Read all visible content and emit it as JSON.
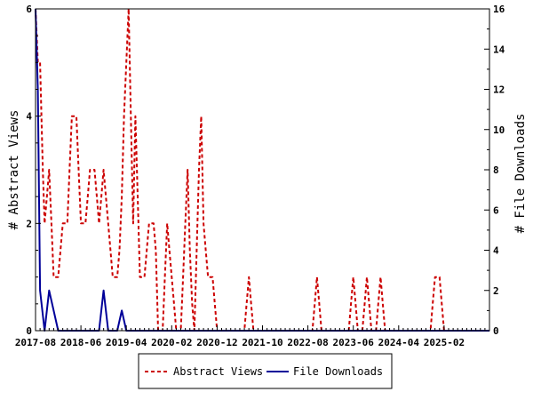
{
  "chart_data": {
    "type": "line",
    "xlabel": "",
    "ylabel_left": "# Abstract Views",
    "ylabel_right": "# File Downloads",
    "ylim_left": [
      0,
      6
    ],
    "ylim_right": [
      0,
      16
    ],
    "yticks_left": [
      0,
      2,
      4,
      6
    ],
    "yticks_right": [
      0,
      2,
      4,
      6,
      8,
      10,
      12,
      14,
      16
    ],
    "xlim": [
      0,
      100
    ],
    "xticks": [
      {
        "x": 0,
        "label": "2017-08"
      },
      {
        "x": 10,
        "label": "2018-06"
      },
      {
        "x": 20,
        "label": "2019-04"
      },
      {
        "x": 30,
        "label": "2020-02"
      },
      {
        "x": 40,
        "label": "2020-12"
      },
      {
        "x": 50,
        "label": "2021-10"
      },
      {
        "x": 60,
        "label": "2022-08"
      },
      {
        "x": 70,
        "label": "2023-06"
      },
      {
        "x": 80,
        "label": "2024-04"
      },
      {
        "x": 90,
        "label": "2025-02"
      }
    ],
    "grid": false,
    "legend_position": "bottom",
    "series": [
      {
        "name": "Abstract Views",
        "axis": "left",
        "color": "#cc0000",
        "style": "dashed",
        "points": [
          [
            0,
            6
          ],
          [
            0.5,
            5
          ],
          [
            1,
            5
          ],
          [
            1.6,
            3
          ],
          [
            2,
            2
          ],
          [
            2.5,
            2.5
          ],
          [
            3,
            3
          ],
          [
            3.5,
            2
          ],
          [
            4,
            1
          ],
          [
            5,
            1
          ],
          [
            5.5,
            1.5
          ],
          [
            6,
            2
          ],
          [
            7,
            2
          ],
          [
            7.5,
            3
          ],
          [
            8,
            4
          ],
          [
            9,
            4
          ],
          [
            9.5,
            3
          ],
          [
            10,
            2
          ],
          [
            11,
            2
          ],
          [
            11.5,
            2.5
          ],
          [
            12,
            3
          ],
          [
            13,
            3
          ],
          [
            13.5,
            2.5
          ],
          [
            14,
            2
          ],
          [
            14.5,
            2.5
          ],
          [
            15,
            3
          ],
          [
            15.5,
            2.5
          ],
          [
            16,
            2
          ],
          [
            17,
            1
          ],
          [
            18,
            1
          ],
          [
            18.5,
            1.5
          ],
          [
            19,
            2.5
          ],
          [
            19.5,
            4
          ],
          [
            20,
            5
          ],
          [
            20.5,
            6
          ],
          [
            21,
            4
          ],
          [
            21.5,
            2
          ],
          [
            22,
            4
          ],
          [
            22.5,
            2.5
          ],
          [
            23,
            1
          ],
          [
            24,
            1
          ],
          [
            24.5,
            1.5
          ],
          [
            25,
            2
          ],
          [
            26,
            2
          ],
          [
            26.5,
            1.5
          ],
          [
            27,
            0
          ],
          [
            28,
            0
          ],
          [
            28.5,
            1
          ],
          [
            29,
            2
          ],
          [
            29.5,
            1.5
          ],
          [
            30,
            1
          ],
          [
            30.5,
            0.5
          ],
          [
            31,
            0
          ],
          [
            32,
            0
          ],
          [
            32.5,
            1
          ],
          [
            33,
            2
          ],
          [
            33.5,
            3
          ],
          [
            34,
            1.5
          ],
          [
            34.5,
            0.5
          ],
          [
            35,
            0
          ],
          [
            35.5,
            1.5
          ],
          [
            36,
            3
          ],
          [
            36.5,
            4
          ],
          [
            37,
            2
          ],
          [
            37.5,
            1.5
          ],
          [
            38,
            1
          ],
          [
            39,
            1
          ],
          [
            39.5,
            0.5
          ],
          [
            40,
            0
          ],
          [
            46,
            0
          ],
          [
            46.5,
            0.5
          ],
          [
            47,
            1
          ],
          [
            47.5,
            0.5
          ],
          [
            48,
            0
          ],
          [
            61,
            0
          ],
          [
            61.5,
            0.5
          ],
          [
            62,
            1
          ],
          [
            62.5,
            0.5
          ],
          [
            63,
            0
          ],
          [
            69,
            0
          ],
          [
            69.5,
            0.5
          ],
          [
            70,
            1
          ],
          [
            70.5,
            0.5
          ],
          [
            71,
            0
          ],
          [
            72,
            0
          ],
          [
            72.5,
            0.5
          ],
          [
            73,
            1
          ],
          [
            73.5,
            0.5
          ],
          [
            74,
            0
          ],
          [
            75,
            0
          ],
          [
            75.5,
            0.5
          ],
          [
            76,
            1
          ],
          [
            76.5,
            0.5
          ],
          [
            77,
            0
          ],
          [
            87,
            0
          ],
          [
            87.5,
            0.5
          ],
          [
            88,
            1
          ],
          [
            89,
            1
          ],
          [
            89.5,
            0.5
          ],
          [
            90,
            0
          ],
          [
            100,
            0
          ]
        ]
      },
      {
        "name": "File Downloads",
        "axis": "right",
        "color": "#000099",
        "style": "solid",
        "points": [
          [
            0,
            16
          ],
          [
            0.5,
            12
          ],
          [
            1,
            2
          ],
          [
            2,
            0
          ],
          [
            3,
            2
          ],
          [
            4,
            1
          ],
          [
            5,
            0
          ],
          [
            14,
            0
          ],
          [
            15,
            2
          ],
          [
            16,
            0
          ],
          [
            18,
            0
          ],
          [
            19,
            1
          ],
          [
            20,
            0
          ],
          [
            100,
            0
          ]
        ]
      }
    ]
  }
}
